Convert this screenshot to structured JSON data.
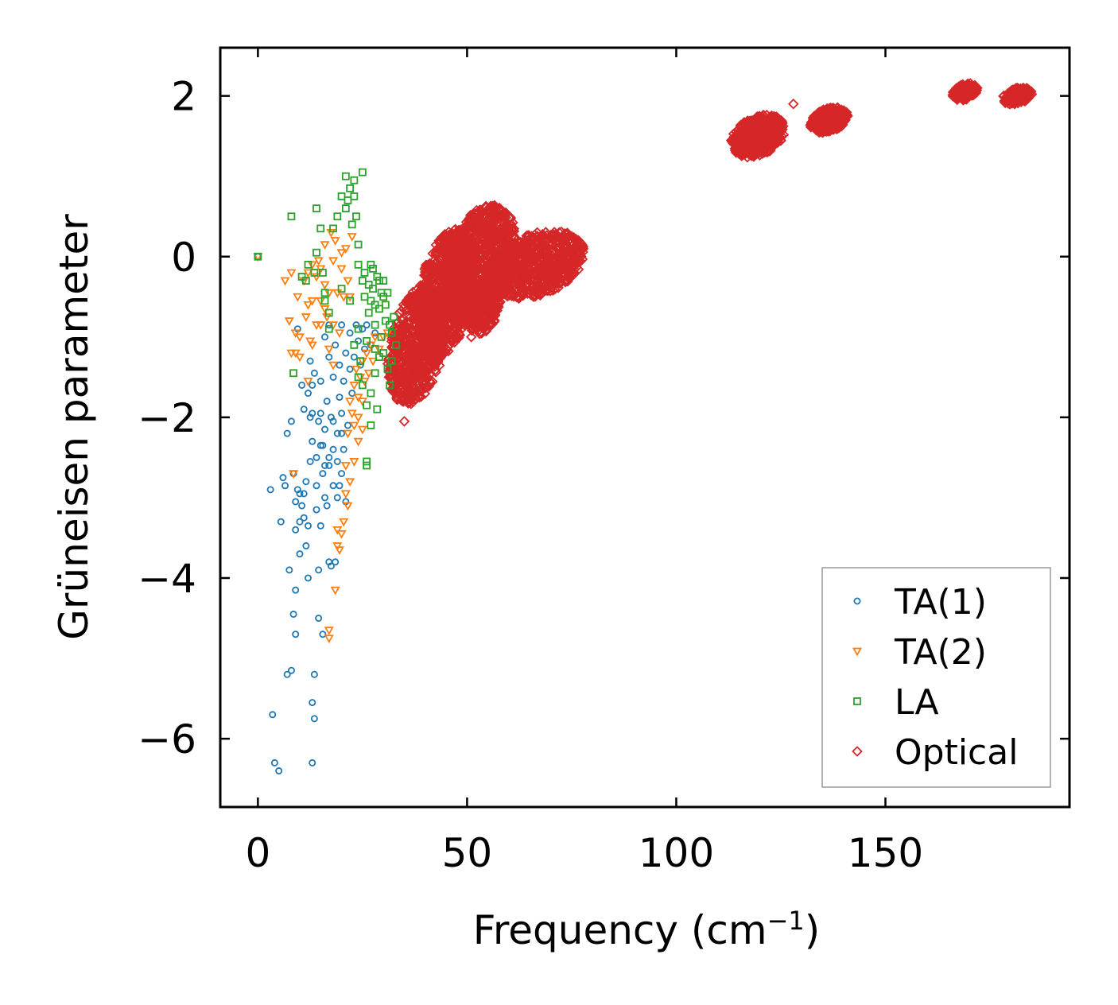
{
  "chart_data": {
    "type": "scatter",
    "title": "",
    "xlabel": "Frequency (cm",
    "xlabel_sup": "−1",
    "xlabel_end": ")",
    "ylabel": "Grüneisen parameter",
    "xlim": [
      -9,
      194
    ],
    "ylim": [
      -6.85,
      2.6
    ],
    "xticks": [
      0,
      50,
      100,
      150
    ],
    "xtick_labels": [
      "0",
      "50",
      "100",
      "150"
    ],
    "yticks": [
      2,
      0,
      -2,
      -4,
      -6
    ],
    "ytick_labels": [
      "2",
      "0",
      "−2",
      "−4",
      "−6"
    ],
    "grid": false,
    "legend_position": "lower-right",
    "series": [
      {
        "name": "TA(1)",
        "marker": "circle",
        "color": "#1f77b4",
        "points": [
          [
            0,
            0
          ],
          [
            3,
            -2.9
          ],
          [
            3.5,
            -5.7
          ],
          [
            4,
            -6.3
          ],
          [
            5,
            -6.4
          ],
          [
            5.5,
            -3.3
          ],
          [
            6,
            -2.75
          ],
          [
            6.5,
            -2.85
          ],
          [
            7,
            -5.2
          ],
          [
            7,
            -2.2
          ],
          [
            7.5,
            -3.9
          ],
          [
            8,
            -5.15
          ],
          [
            8,
            -2.05
          ],
          [
            8.5,
            -4.45
          ],
          [
            8.5,
            -2.7
          ],
          [
            9,
            -4.7
          ],
          [
            9,
            -4.15
          ],
          [
            9,
            -3.4
          ],
          [
            9,
            -3.05
          ],
          [
            9.5,
            -2.9
          ],
          [
            9.5,
            -0.9
          ],
          [
            10,
            -3.7
          ],
          [
            10,
            -3.3
          ],
          [
            10,
            -2.95
          ],
          [
            10.5,
            -1.6
          ],
          [
            10.5,
            -3.1
          ],
          [
            11,
            -2.95
          ],
          [
            11,
            -3.25
          ],
          [
            11.5,
            -3.6
          ],
          [
            11.5,
            -2.8
          ],
          [
            12,
            -3.35
          ],
          [
            12,
            -4.0
          ],
          [
            12,
            -1.7
          ],
          [
            12.5,
            -1.3
          ],
          [
            12.5,
            -2.0
          ],
          [
            13,
            -5.55
          ],
          [
            13,
            -6.3
          ],
          [
            13,
            -1.6
          ],
          [
            13,
            -2.3
          ],
          [
            13.5,
            -5.2
          ],
          [
            13.5,
            -5.75
          ],
          [
            13.5,
            -1.45
          ],
          [
            14,
            -3.15
          ],
          [
            14,
            -2.5
          ],
          [
            14,
            -2.85
          ],
          [
            14.5,
            -3.9
          ],
          [
            14.5,
            -4.5
          ],
          [
            15,
            -2.35
          ],
          [
            15,
            -1.95
          ],
          [
            15,
            -1.55
          ],
          [
            15,
            -3.35
          ],
          [
            15.5,
            -4.7
          ],
          [
            15.5,
            -2.7
          ],
          [
            16,
            -1.0
          ],
          [
            16,
            -2.15
          ],
          [
            16,
            -3.0
          ],
          [
            16.5,
            -1.8
          ],
          [
            16.5,
            -3.1
          ],
          [
            17,
            -2.6
          ],
          [
            17,
            -3.8
          ],
          [
            17,
            -1.25
          ],
          [
            17,
            -0.85
          ],
          [
            17.5,
            -2.0
          ],
          [
            17.5,
            -3.85
          ],
          [
            18,
            -2.4
          ],
          [
            18,
            -1.5
          ],
          [
            18,
            -2.85
          ],
          [
            18.5,
            -3.8
          ],
          [
            18.5,
            -1.1
          ],
          [
            19,
            -2.2
          ],
          [
            19,
            -3.0
          ],
          [
            19,
            -2.55
          ],
          [
            19.5,
            -1.75
          ],
          [
            19.5,
            -1.35
          ],
          [
            20,
            -2.7
          ],
          [
            20,
            -0.85
          ],
          [
            20,
            -1.95
          ],
          [
            20.5,
            -2.4
          ],
          [
            20.5,
            -1.55
          ],
          [
            21,
            -3.05
          ],
          [
            21,
            -1.2
          ],
          [
            21.5,
            -2.1
          ],
          [
            22,
            -1.4
          ],
          [
            22,
            -0.95
          ],
          [
            22.5,
            -1.7
          ],
          [
            23,
            -1.25
          ],
          [
            23.5,
            -0.85
          ],
          [
            24,
            -1.05
          ],
          [
            24.5,
            -1.35
          ],
          [
            25,
            -0.9
          ],
          [
            25.5,
            -1.15
          ],
          [
            26,
            -0.85
          ],
          [
            27,
            -1.1
          ],
          [
            28,
            -0.95
          ],
          [
            14.5,
            -2.05
          ],
          [
            16,
            -2.6
          ],
          [
            13,
            -1.95
          ],
          [
            15.5,
            -2.35
          ],
          [
            18,
            -2.05
          ],
          [
            19.5,
            -2.85
          ],
          [
            17,
            -2.5
          ],
          [
            20,
            -2.2
          ],
          [
            11,
            -1.9
          ],
          [
            12.5,
            -2.55
          ]
        ]
      },
      {
        "name": "TA(2)",
        "marker": "triangle-down",
        "color": "#ff7f0e",
        "points": [
          [
            0,
            0
          ],
          [
            6.5,
            -0.3
          ],
          [
            7.5,
            -0.8
          ],
          [
            8,
            -0.2
          ],
          [
            8,
            -1.2
          ],
          [
            8.5,
            -2.7
          ],
          [
            9,
            -0.95
          ],
          [
            9,
            -1.2
          ],
          [
            9.5,
            -0.5
          ],
          [
            10,
            -1.0
          ],
          [
            10,
            -1.25
          ],
          [
            11,
            -0.3
          ],
          [
            11.5,
            -0.75
          ],
          [
            12,
            -0.2
          ],
          [
            12,
            -0.6
          ],
          [
            12.5,
            -1.05
          ],
          [
            13,
            -0.1
          ],
          [
            13,
            -0.55
          ],
          [
            14,
            -0.25
          ],
          [
            14.5,
            -0.05
          ],
          [
            15,
            -0.55
          ],
          [
            15,
            -0.85
          ],
          [
            16,
            0.15
          ],
          [
            16,
            -0.35
          ],
          [
            16.5,
            -0.75
          ],
          [
            17,
            -1.15
          ],
          [
            17,
            -4.65
          ],
          [
            17,
            -4.75
          ],
          [
            17.5,
            0.3
          ],
          [
            18,
            -0.05
          ],
          [
            18,
            -1.35
          ],
          [
            18.5,
            0.2
          ],
          [
            18.5,
            -4.15
          ],
          [
            19,
            -0.45
          ],
          [
            19,
            -3.6
          ],
          [
            19,
            -3.4
          ],
          [
            19.5,
            -3.65
          ],
          [
            20,
            0.05
          ],
          [
            20,
            -0.15
          ],
          [
            20,
            -3.45
          ],
          [
            20.5,
            -0.5
          ],
          [
            21,
            0.1
          ],
          [
            21,
            -2.6
          ],
          [
            21,
            -2.95
          ],
          [
            21.5,
            -0.3
          ],
          [
            21.5,
            -2.2
          ],
          [
            22,
            -0.5
          ],
          [
            22,
            -1.8
          ],
          [
            22.5,
            0.25
          ],
          [
            22.5,
            -1.95
          ],
          [
            23,
            -2.1
          ],
          [
            23,
            -1.6
          ],
          [
            23.5,
            -1.4
          ],
          [
            24,
            -2.0
          ],
          [
            24,
            -1.75
          ],
          [
            24.5,
            -1.5
          ],
          [
            25,
            -1.8
          ],
          [
            25,
            -1.3
          ],
          [
            25.5,
            -1.55
          ],
          [
            26,
            -1.2
          ],
          [
            26.5,
            -1.45
          ],
          [
            27,
            -1.1
          ],
          [
            27.5,
            -1.3
          ],
          [
            28,
            -1.0
          ],
          [
            29,
            -1.15
          ],
          [
            30,
            -1.0
          ],
          [
            31,
            -0.95
          ],
          [
            23,
            -2.55
          ],
          [
            22,
            -2.8
          ],
          [
            21.5,
            -3.1
          ],
          [
            20.5,
            -3.3
          ],
          [
            24,
            -2.3
          ],
          [
            25,
            -2.15
          ],
          [
            19.5,
            -0.95
          ],
          [
            18,
            -0.85
          ],
          [
            17,
            -0.45
          ],
          [
            16,
            -0.65
          ],
          [
            15,
            -0.15
          ],
          [
            14,
            -0.85
          ],
          [
            13,
            -1.1
          ],
          [
            12,
            -1.55
          ]
        ]
      },
      {
        "name": "LA",
        "marker": "square",
        "color": "#2ca02c",
        "points": [
          [
            0,
            0
          ],
          [
            8,
            0.5
          ],
          [
            8.5,
            -1.45
          ],
          [
            10.5,
            -0.25
          ],
          [
            11.5,
            -0.3
          ],
          [
            12,
            -0.1
          ],
          [
            13.5,
            -0.2
          ],
          [
            14,
            0.6
          ],
          [
            14,
            0.05
          ],
          [
            15,
            0.35
          ],
          [
            15.5,
            -0.2
          ],
          [
            16,
            -0.55
          ],
          [
            16,
            -0.45
          ],
          [
            17,
            -0.7
          ],
          [
            17,
            -0.9
          ],
          [
            18,
            0.35
          ],
          [
            19,
            0.5
          ],
          [
            20,
            0.75
          ],
          [
            20,
            -0.4
          ],
          [
            21,
            0.6
          ],
          [
            21,
            1.0
          ],
          [
            21.5,
            0.7
          ],
          [
            22,
            0.85
          ],
          [
            22,
            -0.55
          ],
          [
            22.5,
            0.4
          ],
          [
            23,
            0.75
          ],
          [
            23,
            0.95
          ],
          [
            23.5,
            0.5
          ],
          [
            24,
            0.15
          ],
          [
            24,
            -0.1
          ],
          [
            25,
            1.05
          ],
          [
            25,
            -0.3
          ],
          [
            25.5,
            -0.5
          ],
          [
            26,
            -2.55
          ],
          [
            26,
            -2.6
          ],
          [
            26.5,
            -0.7
          ],
          [
            27,
            -0.1
          ],
          [
            27,
            -2.1
          ],
          [
            27.5,
            -0.4
          ],
          [
            28,
            -0.6
          ],
          [
            28,
            -0.85
          ],
          [
            28.5,
            -1.9
          ],
          [
            29,
            -0.3
          ],
          [
            29,
            -0.65
          ],
          [
            29.5,
            -1.0
          ],
          [
            30,
            -0.5
          ],
          [
            30,
            -1.2
          ],
          [
            30.5,
            -0.8
          ],
          [
            31,
            -0.45
          ],
          [
            31,
            -1.4
          ],
          [
            31.5,
            -1.6
          ],
          [
            32,
            -0.95
          ],
          [
            32,
            -1.3
          ],
          [
            32.5,
            -0.75
          ],
          [
            33,
            -1.1
          ],
          [
            24,
            -0.9
          ],
          [
            24.5,
            -1.3
          ],
          [
            25,
            -1.6
          ],
          [
            26,
            -1.85
          ],
          [
            27,
            -1.7
          ],
          [
            28,
            -1.45
          ],
          [
            29,
            -1.25
          ],
          [
            30,
            -0.3
          ],
          [
            25.5,
            -0.2
          ],
          [
            26.5,
            -0.35
          ],
          [
            27.5,
            -0.15
          ],
          [
            28.5,
            -0.25
          ],
          [
            29.5,
            -0.45
          ],
          [
            30.5,
            -0.6
          ],
          [
            31.5,
            -0.85
          ],
          [
            23,
            -1.1
          ],
          [
            24,
            -1.5
          ],
          [
            26,
            -1.05
          ],
          [
            27,
            -0.55
          ],
          [
            28,
            -1.15
          ]
        ]
      },
      {
        "name": "Optical",
        "marker": "diamond",
        "color": "#d62728",
        "points": [
          [
            128,
            1.9
          ],
          [
            51,
            -1.0
          ],
          [
            35,
            -2.05
          ]
        ]
      }
    ],
    "optical_clusters": [
      {
        "x": [
          31,
          45
        ],
        "y": [
          -1.8,
          -0.4
        ],
        "n": 700
      },
      {
        "x": [
          38,
          52
        ],
        "y": [
          -1.2,
          0.3
        ],
        "n": 700
      },
      {
        "x": [
          44,
          62
        ],
        "y": [
          -0.8,
          0.6
        ],
        "n": 800
      },
      {
        "x": [
          55,
          78
        ],
        "y": [
          -0.5,
          0.3
        ],
        "n": 700
      },
      {
        "x": [
          50,
          58
        ],
        "y": [
          -0.95,
          -0.3
        ],
        "n": 200
      },
      {
        "x": [
          113,
          126
        ],
        "y": [
          1.25,
          1.75
        ],
        "n": 500
      },
      {
        "x": [
          132,
          141
        ],
        "y": [
          1.55,
          1.85
        ],
        "n": 300
      },
      {
        "x": [
          166,
          172
        ],
        "y": [
          1.95,
          2.15
        ],
        "n": 150
      },
      {
        "x": [
          178,
          185
        ],
        "y": [
          1.9,
          2.1
        ],
        "n": 150
      }
    ]
  }
}
